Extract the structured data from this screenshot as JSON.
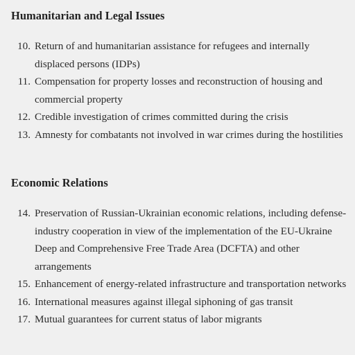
{
  "sections": [
    {
      "heading": "Humanitarian and Legal Issues",
      "items": [
        {
          "num": "10.",
          "text": "Return of and humanitarian assistance for refugees and internally displaced persons (IDPs)"
        },
        {
          "num": "11.",
          "text": "Compensation for property losses and reconstruction of housing and commercial property"
        },
        {
          "num": "12.",
          "text": "Credible investigation of crimes committed during the crisis"
        },
        {
          "num": "13.",
          "text": "Amnesty for combatants not involved in war crimes during the hostilities"
        }
      ]
    },
    {
      "heading": "Economic Relations",
      "items": [
        {
          "num": "14.",
          "text": "Preservation of Russian-Ukrainian economic relations, including defense-industry cooperation in view of the implementation of the EU-Ukraine Deep and Comprehensive Free Trade Area (DCFTA) and other arrangements"
        },
        {
          "num": "15.",
          "text": "Enhancement of energy-related infrastructure and transportation networks"
        },
        {
          "num": "16.",
          "text": "International measures against illegal siphoning of gas transit"
        },
        {
          "num": "17.",
          "text": "Mutual guarantees for current status of labor migrants"
        }
      ]
    }
  ]
}
